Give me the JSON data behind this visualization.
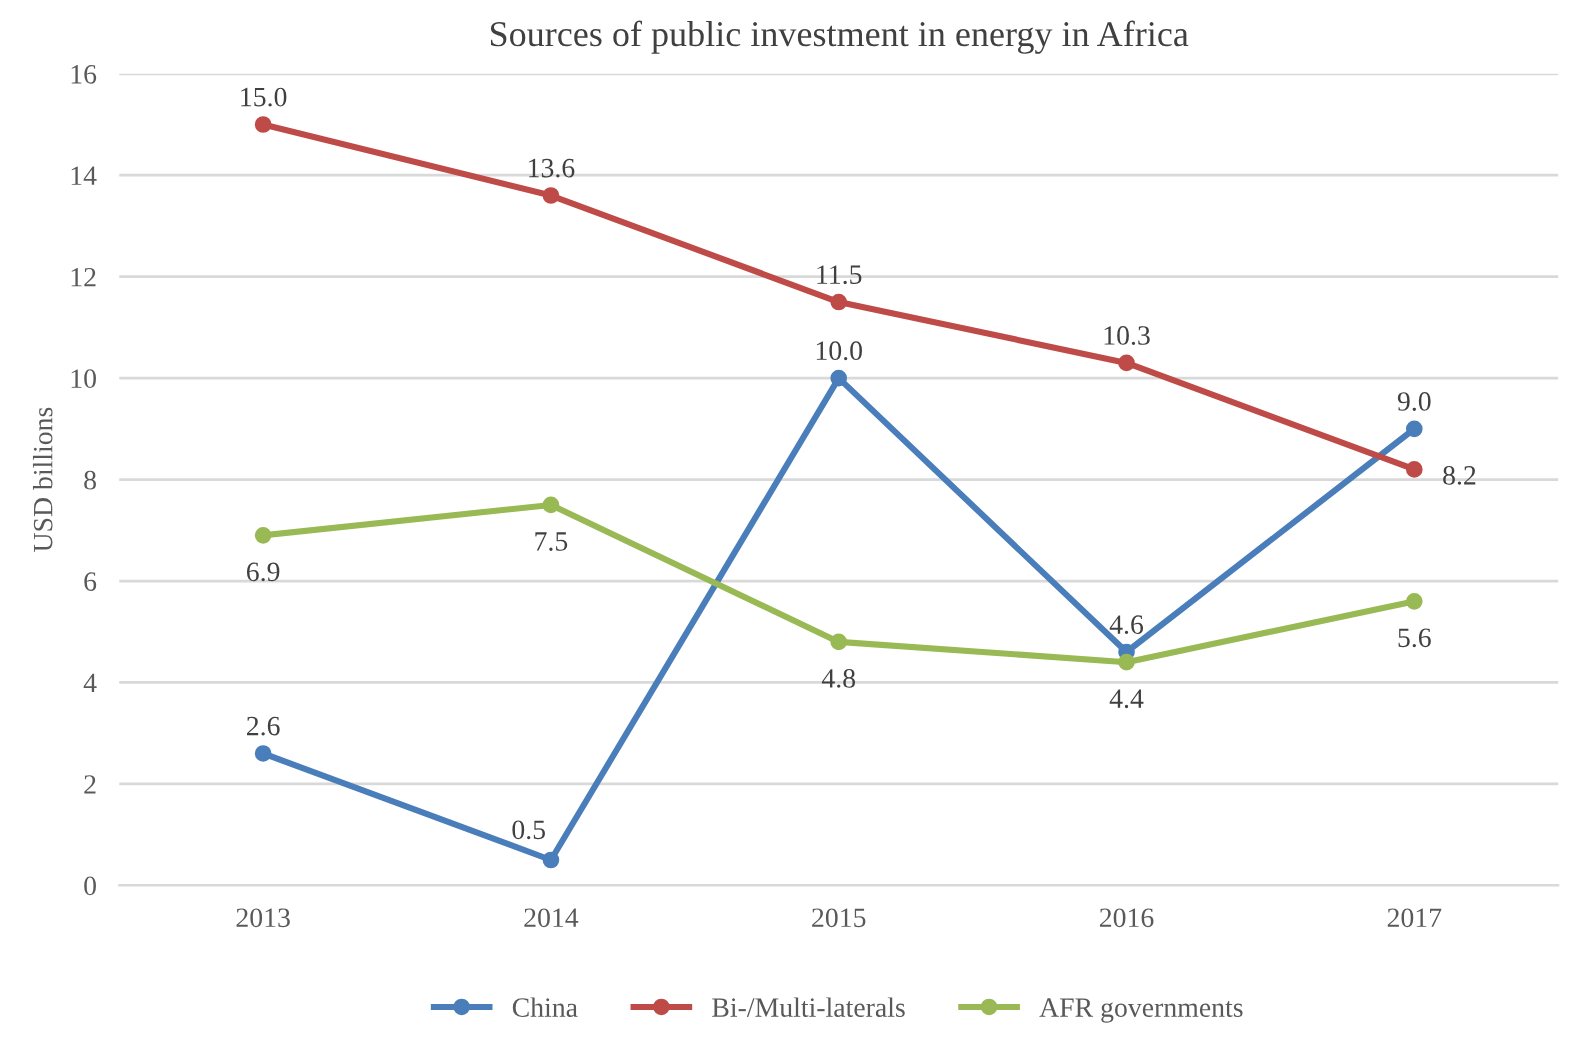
{
  "chart_data": {
    "type": "line",
    "title": "Sources of public investment in energy in Africa",
    "ylabel": "USD billions",
    "categories": [
      "2013",
      "2014",
      "2015",
      "2016",
      "2017"
    ],
    "series": [
      {
        "name": "China",
        "color": "#4a7ebb",
        "values": [
          2.6,
          0.5,
          10.0,
          4.6,
          9.0
        ],
        "value_labels": [
          "2.6",
          "0.5",
          "10.0",
          "4.6",
          "9.0"
        ]
      },
      {
        "name": "Bi-/Multi-laterals",
        "color": "#be4b48",
        "values": [
          15.0,
          13.6,
          11.5,
          10.3,
          8.2
        ],
        "value_labels": [
          "15.0",
          "13.6",
          "11.5",
          "10.3",
          "8.2"
        ]
      },
      {
        "name": "AFR governments",
        "color": "#98b954",
        "values": [
          6.9,
          7.5,
          4.8,
          4.4,
          5.6
        ],
        "value_labels": [
          "6.9",
          "7.5",
          "4.8",
          "4.4",
          "5.6"
        ]
      }
    ],
    "ylim": [
      0,
      16
    ],
    "yticks": [
      0,
      2,
      4,
      6,
      8,
      10,
      12,
      14,
      16
    ],
    "grid": "y",
    "legend": "bottom",
    "marker": "circle",
    "line_style": "solid"
  }
}
